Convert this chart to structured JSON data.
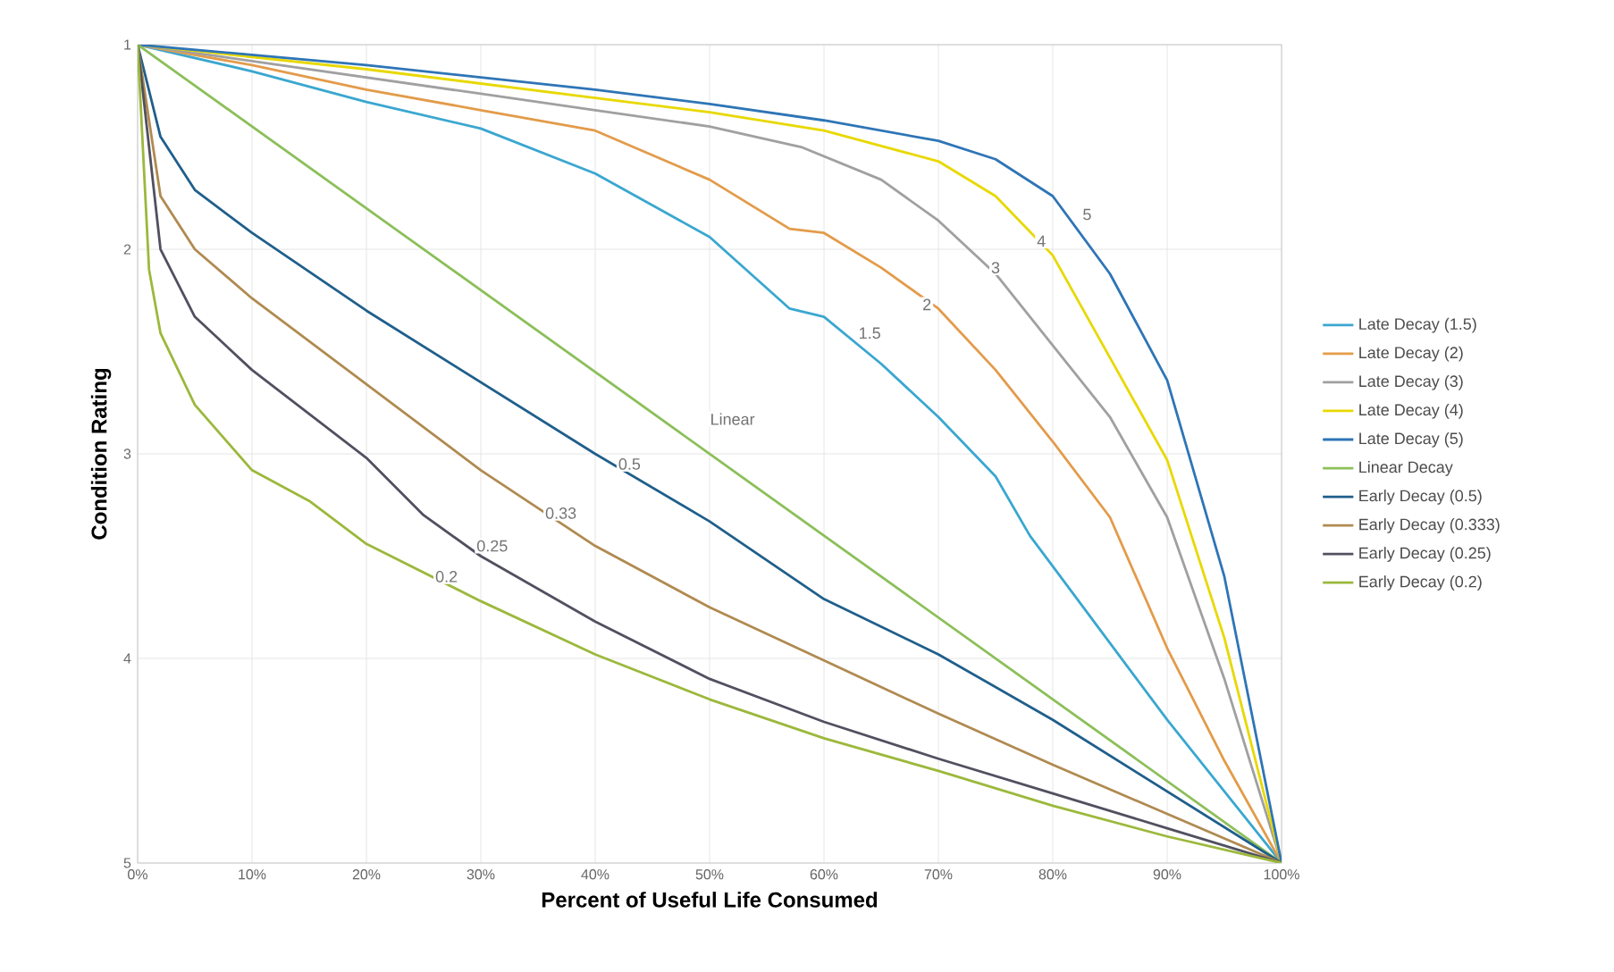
{
  "chart_data": {
    "type": "line",
    "xlabel": "Percent of Useful Life Consumed",
    "ylabel": "Condition Rating",
    "xlim": [
      0,
      100
    ],
    "ylim": [
      5,
      1
    ],
    "xticks": [
      {
        "value": 0,
        "label": "0%"
      },
      {
        "value": 10,
        "label": "10%"
      },
      {
        "value": 20,
        "label": "20%"
      },
      {
        "value": 30,
        "label": "30%"
      },
      {
        "value": 40,
        "label": "40%"
      },
      {
        "value": 50,
        "label": "50%"
      },
      {
        "value": 60,
        "label": "60%"
      },
      {
        "value": 70,
        "label": "70%"
      },
      {
        "value": 80,
        "label": "80%"
      },
      {
        "value": 90,
        "label": "90%"
      },
      {
        "value": 100,
        "label": "100%"
      }
    ],
    "yticks": [
      1,
      2,
      3,
      4,
      5
    ],
    "grid": true,
    "legend": "right",
    "marker": "none",
    "line_style": "solid",
    "series": [
      {
        "name": "Late Decay (1.5)",
        "color": "#3aa7d0",
        "x": [
          0,
          10,
          20,
          30,
          40,
          50,
          57,
          60,
          65,
          70,
          75,
          78,
          80,
          90,
          100
        ],
        "values": [
          1,
          1.13,
          1.28,
          1.41,
          1.63,
          1.94,
          2.29,
          2.33,
          2.56,
          2.82,
          3.11,
          3.4,
          3.55,
          4.3,
          5
        ]
      },
      {
        "name": "Late Decay (2)",
        "color": "#e39b4a",
        "x": [
          0,
          10,
          20,
          30,
          40,
          50,
          57,
          60,
          65,
          70,
          75,
          80,
          85,
          90,
          95,
          100
        ],
        "values": [
          1,
          1.1,
          1.22,
          1.32,
          1.42,
          1.66,
          1.9,
          1.92,
          2.09,
          2.29,
          2.59,
          2.94,
          3.31,
          3.95,
          4.5,
          5
        ]
      },
      {
        "name": "Late Decay (3)",
        "color": "#a0a0a0",
        "x": [
          0,
          10,
          20,
          30,
          40,
          50,
          58,
          65,
          70,
          75,
          80,
          85,
          90,
          95,
          100
        ],
        "values": [
          1,
          1.08,
          1.16,
          1.24,
          1.32,
          1.4,
          1.5,
          1.66,
          1.86,
          2.12,
          2.47,
          2.82,
          3.31,
          4.1,
          5
        ]
      },
      {
        "name": "Late Decay (4)",
        "color": "#e8d800",
        "x": [
          0,
          10,
          20,
          30,
          40,
          50,
          60,
          70,
          75,
          80,
          85,
          90,
          95,
          100
        ],
        "values": [
          1,
          1.06,
          1.12,
          1.19,
          1.26,
          1.33,
          1.42,
          1.57,
          1.74,
          2.03,
          2.53,
          3.03,
          3.9,
          5
        ]
      },
      {
        "name": "Late Decay (5)",
        "color": "#2e75b6",
        "x": [
          0,
          10,
          20,
          30,
          40,
          50,
          60,
          70,
          75,
          80,
          85,
          90,
          95,
          100
        ],
        "values": [
          1,
          1.05,
          1.1,
          1.16,
          1.22,
          1.29,
          1.37,
          1.47,
          1.56,
          1.74,
          2.12,
          2.64,
          3.6,
          5
        ]
      },
      {
        "name": "Linear Decay",
        "color": "#8cbf5a",
        "x": [
          0,
          50,
          100
        ],
        "values": [
          1,
          3,
          5
        ]
      },
      {
        "name": "Early Decay (0.5)",
        "color": "#1f5f8b",
        "x": [
          0,
          2,
          5,
          10,
          20,
          30,
          40,
          50,
          60,
          70,
          80,
          90,
          100
        ],
        "values": [
          1,
          1.45,
          1.71,
          1.92,
          2.3,
          2.65,
          3.0,
          3.33,
          3.71,
          3.98,
          4.3,
          4.65,
          5
        ]
      },
      {
        "name": "Early Decay (0.333)",
        "color": "#b08a50",
        "x": [
          0,
          2,
          5,
          10,
          20,
          30,
          40,
          50,
          60,
          70,
          80,
          90,
          100
        ],
        "values": [
          1,
          1.74,
          2.0,
          2.24,
          2.66,
          3.08,
          3.45,
          3.75,
          4.01,
          4.27,
          4.52,
          4.76,
          5
        ]
      },
      {
        "name": "Early Decay (0.25)",
        "color": "#505060",
        "x": [
          0,
          2,
          5,
          10,
          20,
          25,
          30,
          40,
          50,
          60,
          70,
          80,
          90,
          100
        ],
        "values": [
          1,
          2.0,
          2.33,
          2.59,
          3.02,
          3.3,
          3.5,
          3.82,
          4.1,
          4.31,
          4.49,
          4.66,
          4.83,
          5
        ]
      },
      {
        "name": "Early Decay (0.2)",
        "color": "#9cb83c",
        "x": [
          0,
          1,
          2,
          5,
          10,
          15,
          20,
          30,
          40,
          50,
          60,
          70,
          80,
          90,
          100
        ],
        "values": [
          1,
          2.1,
          2.41,
          2.76,
          3.08,
          3.23,
          3.44,
          3.72,
          3.98,
          4.2,
          4.39,
          4.55,
          4.72,
          4.87,
          5
        ]
      }
    ],
    "annotations": [
      {
        "text": "5",
        "x": 83,
        "y": 1.83
      },
      {
        "text": "4",
        "x": 79,
        "y": 1.96
      },
      {
        "text": "3",
        "x": 75,
        "y": 2.09
      },
      {
        "text": "2",
        "x": 69,
        "y": 2.27
      },
      {
        "text": "1.5",
        "x": 64,
        "y": 2.41
      },
      {
        "text": "Linear",
        "x": 52,
        "y": 2.83
      },
      {
        "text": "0.5",
        "x": 43,
        "y": 3.05
      },
      {
        "text": "0.33",
        "x": 37,
        "y": 3.29
      },
      {
        "text": "0.25",
        "x": 31,
        "y": 3.45
      },
      {
        "text": "0.2",
        "x": 27,
        "y": 3.6
      }
    ]
  }
}
